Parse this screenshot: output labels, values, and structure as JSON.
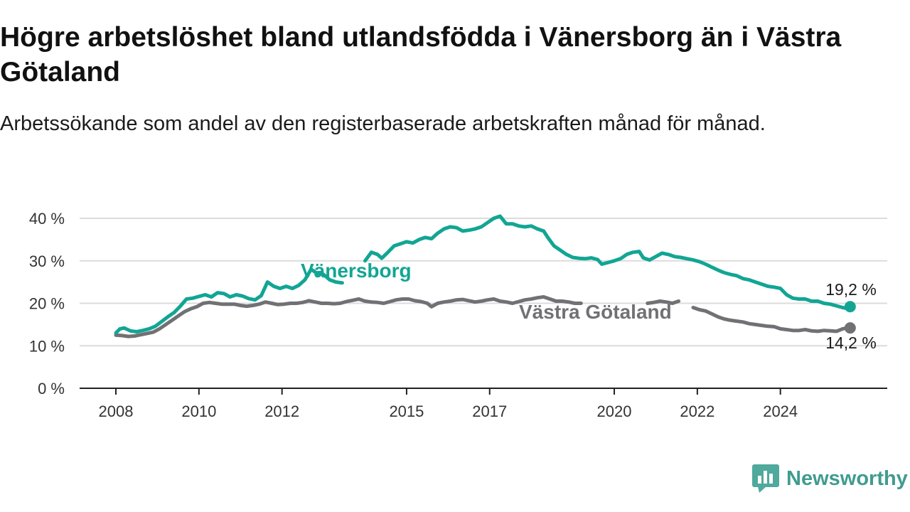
{
  "title": "Högre arbetslöshet bland utlandsfödda i Vänersborg än i Västra Götaland",
  "subtitle": "Arbetssökande som andel av den registerbaserade arbetskraften månad för månad.",
  "brand": {
    "name": "Newsworthy"
  },
  "colors": {
    "vanersborg": "#12a594",
    "vastra_gotaland": "#717074",
    "grid": "#dcdcdc",
    "axis": "#222222"
  },
  "chart_data": {
    "type": "line",
    "ylim": [
      0,
      40
    ],
    "xlim": [
      2008.0,
      2025.7
    ],
    "y_ticks": [
      {
        "value": 0,
        "label": "0 %"
      },
      {
        "value": 10,
        "label": "10 %"
      },
      {
        "value": 20,
        "label": "20 %"
      },
      {
        "value": 30,
        "label": "30 %"
      },
      {
        "value": 40,
        "label": "40 %"
      }
    ],
    "x_ticks": [
      {
        "value": 2008,
        "label": "2008"
      },
      {
        "value": 2010,
        "label": "2010"
      },
      {
        "value": 2012,
        "label": "2012"
      },
      {
        "value": 2015,
        "label": "2015"
      },
      {
        "value": 2017,
        "label": "2017"
      },
      {
        "value": 2020,
        "label": "2020"
      },
      {
        "value": 2022,
        "label": "2022"
      },
      {
        "value": 2024,
        "label": "2024"
      }
    ],
    "grid": true,
    "series": [
      {
        "name": "Vänersborg",
        "end_label": "19,2 %",
        "points": [
          [
            2008.0,
            13.0
          ],
          [
            2008.1,
            14.0
          ],
          [
            2008.2,
            14.2
          ],
          [
            2008.35,
            13.5
          ],
          [
            2008.5,
            13.3
          ],
          [
            2008.65,
            13.6
          ],
          [
            2008.8,
            14.0
          ],
          [
            2008.95,
            14.6
          ],
          [
            2009.1,
            15.7
          ],
          [
            2009.25,
            16.8
          ],
          [
            2009.4,
            17.8
          ],
          [
            2009.55,
            19.3
          ],
          [
            2009.7,
            21.0
          ],
          [
            2009.85,
            21.2
          ],
          [
            2010.0,
            21.6
          ],
          [
            2010.15,
            22.0
          ],
          [
            2010.3,
            21.5
          ],
          [
            2010.45,
            22.5
          ],
          [
            2010.6,
            22.3
          ],
          [
            2010.75,
            21.5
          ],
          [
            2010.9,
            22.0
          ],
          [
            2011.05,
            21.7
          ],
          [
            2011.2,
            21.1
          ],
          [
            2011.35,
            20.8
          ],
          [
            2011.5,
            21.8
          ],
          [
            2011.65,
            25.0
          ],
          [
            2011.8,
            24.0
          ],
          [
            2011.95,
            23.5
          ],
          [
            2012.1,
            24.0
          ],
          [
            2012.25,
            23.5
          ],
          [
            2012.4,
            24.2
          ],
          [
            2012.55,
            25.5
          ],
          [
            2012.7,
            28.0
          ],
          [
            2012.85,
            27.0
          ],
          [
            2013.0,
            26.8
          ],
          [
            2013.15,
            25.5
          ],
          [
            2013.3,
            25.0
          ],
          [
            2013.45,
            24.8
          ],
          null,
          [
            2014.0,
            30.0
          ],
          [
            2014.15,
            32.0
          ],
          [
            2014.3,
            31.5
          ],
          [
            2014.4,
            30.6
          ],
          [
            2014.55,
            32.0
          ],
          [
            2014.7,
            33.5
          ],
          [
            2014.85,
            34.0
          ],
          [
            2015.0,
            34.5
          ],
          [
            2015.15,
            34.2
          ],
          [
            2015.3,
            35.0
          ],
          [
            2015.45,
            35.5
          ],
          [
            2015.6,
            35.2
          ],
          [
            2015.75,
            36.5
          ],
          [
            2015.9,
            37.5
          ],
          [
            2016.05,
            38.0
          ],
          [
            2016.2,
            37.8
          ],
          [
            2016.35,
            37.0
          ],
          [
            2016.5,
            37.2
          ],
          [
            2016.65,
            37.5
          ],
          [
            2016.8,
            38.0
          ],
          [
            2016.95,
            39.0
          ],
          [
            2017.1,
            40.0
          ],
          [
            2017.25,
            40.5
          ],
          [
            2017.4,
            38.7
          ],
          [
            2017.55,
            38.7
          ],
          [
            2017.7,
            38.2
          ],
          [
            2017.85,
            38.0
          ],
          [
            2018.0,
            38.2
          ],
          [
            2018.15,
            37.5
          ],
          [
            2018.3,
            37.0
          ],
          [
            2018.4,
            35.5
          ],
          [
            2018.55,
            33.5
          ],
          [
            2018.7,
            32.5
          ],
          [
            2018.85,
            31.5
          ],
          [
            2019.0,
            30.8
          ],
          [
            2019.15,
            30.6
          ],
          [
            2019.3,
            30.5
          ],
          [
            2019.45,
            30.7
          ],
          [
            2019.6,
            30.3
          ],
          [
            2019.7,
            29.2
          ],
          [
            2019.85,
            29.6
          ],
          [
            2020.0,
            30.0
          ],
          [
            2020.15,
            30.5
          ],
          [
            2020.3,
            31.5
          ],
          [
            2020.45,
            32.0
          ],
          [
            2020.6,
            32.2
          ],
          [
            2020.7,
            30.7
          ],
          [
            2020.85,
            30.2
          ],
          [
            2021.0,
            31.0
          ],
          [
            2021.15,
            31.8
          ],
          [
            2021.3,
            31.5
          ],
          [
            2021.45,
            31.0
          ],
          [
            2021.6,
            30.8
          ],
          [
            2021.75,
            30.5
          ],
          [
            2021.9,
            30.2
          ],
          [
            2022.05,
            29.8
          ],
          [
            2022.2,
            29.2
          ],
          [
            2022.35,
            28.5
          ],
          [
            2022.5,
            27.8
          ],
          [
            2022.65,
            27.2
          ],
          [
            2022.8,
            26.8
          ],
          [
            2022.95,
            26.5
          ],
          [
            2023.1,
            25.8
          ],
          [
            2023.25,
            25.5
          ],
          [
            2023.4,
            25.0
          ],
          [
            2023.55,
            24.5
          ],
          [
            2023.7,
            24.0
          ],
          [
            2023.85,
            23.8
          ],
          [
            2024.0,
            23.5
          ],
          [
            2024.15,
            22.0
          ],
          [
            2024.3,
            21.2
          ],
          [
            2024.45,
            21.0
          ],
          [
            2024.6,
            21.0
          ],
          [
            2024.75,
            20.5
          ],
          [
            2024.9,
            20.5
          ],
          [
            2025.05,
            20.0
          ],
          [
            2025.2,
            19.8
          ],
          [
            2025.35,
            19.4
          ],
          [
            2025.5,
            19.0
          ],
          [
            2025.6,
            18.8
          ],
          [
            2025.68,
            19.2
          ]
        ]
      },
      {
        "name": "Västra Götaland",
        "end_label": "14,2 %",
        "points": [
          [
            2008.0,
            12.5
          ],
          [
            2008.15,
            12.4
          ],
          [
            2008.3,
            12.2
          ],
          [
            2008.45,
            12.3
          ],
          [
            2008.6,
            12.6
          ],
          [
            2008.75,
            12.9
          ],
          [
            2008.9,
            13.2
          ],
          [
            2009.05,
            14.0
          ],
          [
            2009.2,
            15.0
          ],
          [
            2009.35,
            16.0
          ],
          [
            2009.5,
            17.0
          ],
          [
            2009.65,
            18.0
          ],
          [
            2009.8,
            18.7
          ],
          [
            2009.95,
            19.2
          ],
          [
            2010.1,
            20.0
          ],
          [
            2010.25,
            20.2
          ],
          [
            2010.4,
            20.0
          ],
          [
            2010.55,
            19.8
          ],
          [
            2010.7,
            19.8
          ],
          [
            2010.85,
            19.8
          ],
          [
            2011.0,
            19.5
          ],
          [
            2011.15,
            19.3
          ],
          [
            2011.3,
            19.5
          ],
          [
            2011.45,
            19.8
          ],
          [
            2011.6,
            20.3
          ],
          [
            2011.75,
            20.0
          ],
          [
            2011.9,
            19.7
          ],
          [
            2012.05,
            19.8
          ],
          [
            2012.2,
            20.0
          ],
          [
            2012.35,
            20.0
          ],
          [
            2012.5,
            20.2
          ],
          [
            2012.65,
            20.6
          ],
          [
            2012.8,
            20.3
          ],
          [
            2012.95,
            20.0
          ],
          [
            2013.1,
            20.0
          ],
          [
            2013.25,
            19.9
          ],
          [
            2013.4,
            20.0
          ],
          [
            2013.55,
            20.4
          ],
          [
            2013.7,
            20.7
          ],
          [
            2013.85,
            21.0
          ],
          [
            2014.0,
            20.5
          ],
          [
            2014.15,
            20.3
          ],
          [
            2014.3,
            20.2
          ],
          [
            2014.45,
            20.0
          ],
          [
            2014.6,
            20.4
          ],
          [
            2014.75,
            20.8
          ],
          [
            2014.9,
            21.0
          ],
          [
            2015.05,
            21.0
          ],
          [
            2015.2,
            20.6
          ],
          [
            2015.35,
            20.4
          ],
          [
            2015.5,
            20.0
          ],
          [
            2015.6,
            19.2
          ],
          [
            2015.75,
            20.0
          ],
          [
            2015.9,
            20.3
          ],
          [
            2016.05,
            20.5
          ],
          [
            2016.2,
            20.8
          ],
          [
            2016.35,
            20.9
          ],
          [
            2016.5,
            20.6
          ],
          [
            2016.65,
            20.3
          ],
          [
            2016.8,
            20.5
          ],
          [
            2016.95,
            20.8
          ],
          [
            2017.1,
            21.0
          ],
          [
            2017.25,
            20.5
          ],
          [
            2017.4,
            20.3
          ],
          [
            2017.55,
            20.0
          ],
          [
            2017.7,
            20.4
          ],
          [
            2017.85,
            20.8
          ],
          [
            2018.0,
            21.0
          ],
          [
            2018.15,
            21.3
          ],
          [
            2018.3,
            21.5
          ],
          [
            2018.45,
            21.0
          ],
          [
            2018.6,
            20.5
          ],
          [
            2018.75,
            20.5
          ],
          [
            2018.9,
            20.3
          ],
          [
            2019.05,
            20.0
          ],
          [
            2019.2,
            20.0
          ],
          null,
          [
            2020.8,
            20.0
          ],
          [
            2020.95,
            20.2
          ],
          [
            2021.1,
            20.5
          ],
          [
            2021.25,
            20.3
          ],
          [
            2021.4,
            20.0
          ],
          [
            2021.55,
            20.5
          ],
          null,
          [
            2021.9,
            19.0
          ],
          [
            2022.05,
            18.5
          ],
          [
            2022.2,
            18.2
          ],
          [
            2022.35,
            17.5
          ],
          [
            2022.5,
            16.8
          ],
          [
            2022.65,
            16.3
          ],
          [
            2022.8,
            16.0
          ],
          [
            2022.95,
            15.8
          ],
          [
            2023.1,
            15.6
          ],
          [
            2023.25,
            15.2
          ],
          [
            2023.4,
            15.0
          ],
          [
            2023.55,
            14.8
          ],
          [
            2023.7,
            14.6
          ],
          [
            2023.85,
            14.5
          ],
          [
            2024.0,
            14.0
          ],
          [
            2024.15,
            13.8
          ],
          [
            2024.3,
            13.6
          ],
          [
            2024.45,
            13.6
          ],
          [
            2024.6,
            13.8
          ],
          [
            2024.75,
            13.5
          ],
          [
            2024.9,
            13.4
          ],
          [
            2025.05,
            13.6
          ],
          [
            2025.2,
            13.5
          ],
          [
            2025.35,
            13.4
          ],
          [
            2025.5,
            14.0
          ],
          [
            2025.6,
            14.2
          ],
          [
            2025.68,
            14.2
          ]
        ]
      }
    ]
  }
}
